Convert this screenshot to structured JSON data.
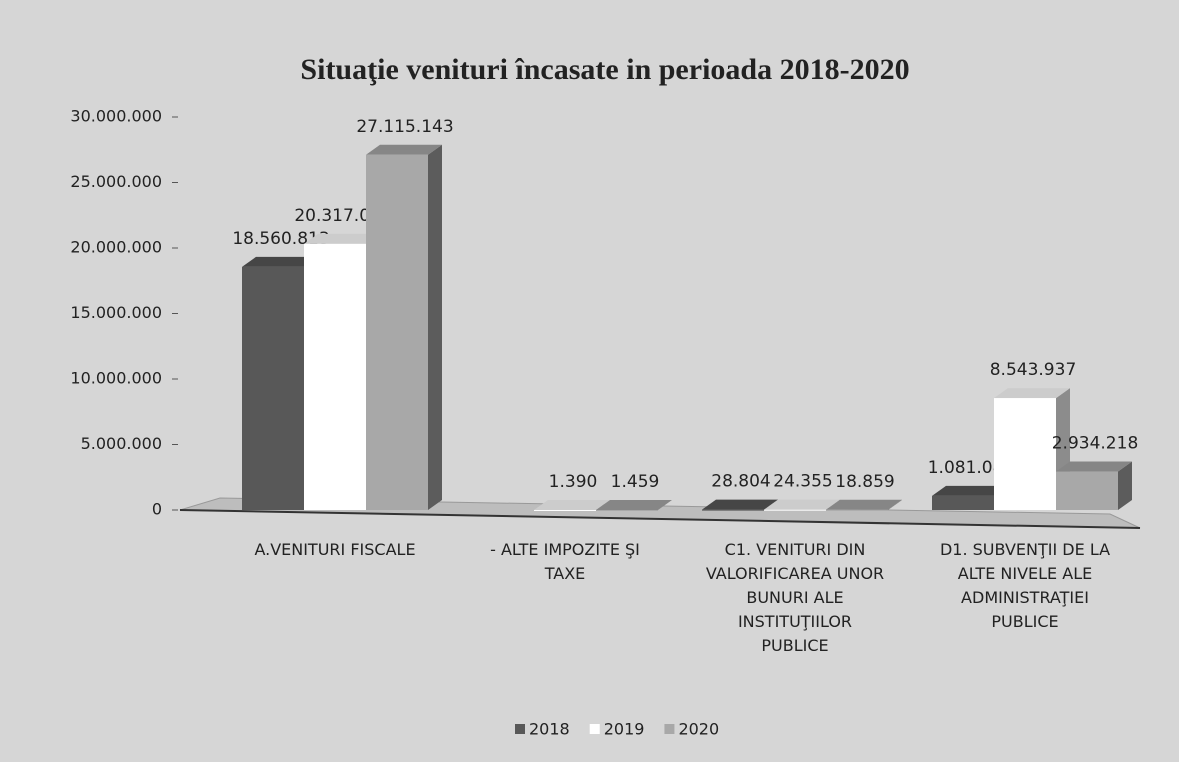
{
  "chart_data": {
    "type": "bar3d",
    "title": "Situaţie venituri încasate in perioada 2018-2020",
    "categories": [
      "A.VENITURI FISCALE",
      "- ALTE IMPOZITE ŞI TAXE",
      "C1. VENITURI DIN VALORIFICAREA UNOR BUNURI ALE INSTITUŢIILOR PUBLICE",
      "D1. SUBVENŢII DE LA ALTE NIVELE ALE ADMINISTRAŢIEI PUBLICE"
    ],
    "series": [
      {
        "name": "2018",
        "color": "#585858",
        "values": [
          18560813,
          null,
          28804,
          1081089
        ],
        "value_labels": [
          "18.560.813",
          null,
          "28.804",
          "1.081.089"
        ]
      },
      {
        "name": "2019",
        "color": "#ffffff",
        "values": [
          20317085,
          1390,
          24355,
          8543937
        ],
        "value_labels": [
          "20.317.085",
          "1.390",
          "24.355",
          "8.543.937"
        ]
      },
      {
        "name": "2020",
        "color": "#a8a8a8",
        "values": [
          27115143,
          1459,
          18859,
          2934218
        ],
        "value_labels": [
          "27.115.143",
          "1.459",
          "18.859",
          "2.934.218"
        ]
      }
    ],
    "ylim": [
      0,
      30000000
    ],
    "yticks": [
      0,
      {
        "value": 5000000,
        "label": "5.000.000"
      },
      {
        "value": 10000000,
        "label": "10.000.000"
      },
      {
        "value": 15000000,
        "label": "15.000.000"
      },
      {
        "value": 20000000,
        "label": "20.000.000"
      },
      {
        "value": 25000000,
        "label": "25.000.000"
      },
      {
        "value": 30000000,
        "label": "30.000.000"
      }
    ],
    "legend": "bottom"
  }
}
